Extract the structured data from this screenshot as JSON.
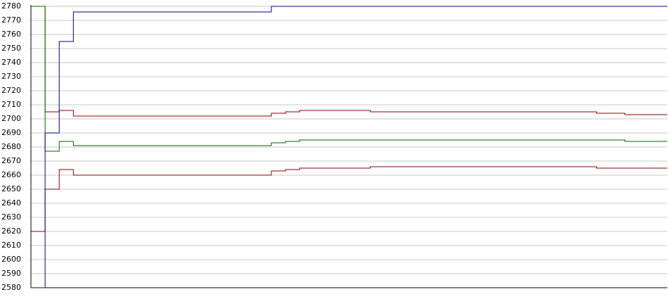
{
  "chart_data": {
    "type": "line",
    "ylim": [
      2580,
      2780
    ],
    "yticks": [
      2580,
      2590,
      2600,
      2610,
      2620,
      2630,
      2640,
      2650,
      2660,
      2670,
      2680,
      2690,
      2700,
      2710,
      2720,
      2730,
      2740,
      2750,
      2760,
      2770,
      2780
    ],
    "grid": true,
    "series": [
      {
        "color": "#8b0000",
        "values": [
          2780,
          2705,
          2706,
          2702,
          2702,
          2702,
          2702,
          2702,
          2702,
          2702,
          2702,
          2702,
          2702,
          2702,
          2702,
          2702,
          2702,
          2704,
          2705,
          2706,
          2706,
          2706,
          2706,
          2706,
          2705,
          2705,
          2705,
          2705,
          2705,
          2705,
          2705,
          2705,
          2705,
          2705,
          2705,
          2705,
          2705,
          2705,
          2705,
          2705,
          2704,
          2704,
          2703,
          2703,
          2703,
          2703
        ]
      },
      {
        "color": "#006400",
        "values": [
          2780,
          2677,
          2684,
          2681,
          2681,
          2681,
          2681,
          2681,
          2681,
          2681,
          2681,
          2681,
          2681,
          2681,
          2681,
          2681,
          2681,
          2683,
          2684,
          2685,
          2685,
          2685,
          2685,
          2685,
          2685,
          2685,
          2685,
          2685,
          2685,
          2685,
          2685,
          2685,
          2685,
          2685,
          2685,
          2685,
          2685,
          2685,
          2685,
          2685,
          2685,
          2685,
          2684,
          2684,
          2684,
          2684
        ]
      },
      {
        "color": "#8b0000",
        "values": [
          2620,
          2650,
          2664,
          2660,
          2660,
          2660,
          2660,
          2660,
          2660,
          2660,
          2660,
          2660,
          2660,
          2660,
          2660,
          2660,
          2660,
          2663,
          2664,
          2665,
          2665,
          2665,
          2665,
          2665,
          2666,
          2666,
          2666,
          2666,
          2666,
          2666,
          2666,
          2666,
          2666,
          2666,
          2666,
          2666,
          2666,
          2666,
          2666,
          2666,
          2665,
          2665,
          2665,
          2665,
          2665,
          2665
        ]
      },
      {
        "color": "#00008b",
        "values": [
          2580,
          2690,
          2755,
          2776,
          2776,
          2776,
          2776,
          2776,
          2776,
          2776,
          2776,
          2776,
          2776,
          2776,
          2776,
          2776,
          2776,
          2780,
          2780,
          2780,
          2780,
          2780,
          2780,
          2780,
          2780,
          2780,
          2780,
          2780,
          2780,
          2780,
          2780,
          2780,
          2780,
          2780,
          2780,
          2780,
          2780,
          2780,
          2780,
          2780,
          2780,
          2780,
          2780,
          2780,
          2780,
          2780
        ]
      }
    ]
  }
}
